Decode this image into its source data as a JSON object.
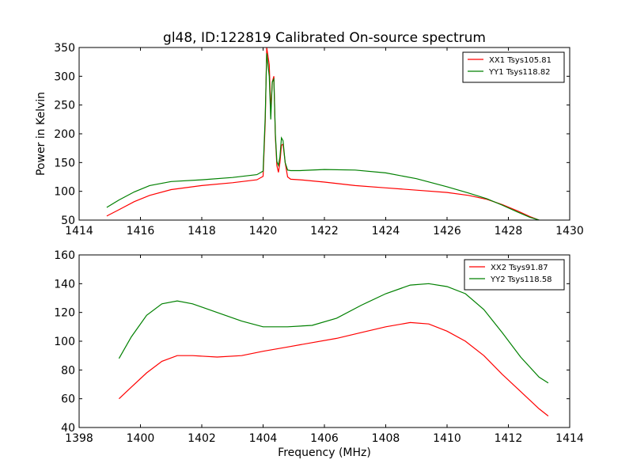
{
  "figure": {
    "background": "#ffffff",
    "title": "gl48, ID:122819 Calibrated On-source spectrum"
  },
  "chart_data": [
    {
      "type": "line",
      "title": "gl48, ID:122819 Calibrated On-source spectrum",
      "xlabel": "",
      "ylabel": "Power in Kelvin",
      "xlim": [
        1414,
        1430
      ],
      "ylim": [
        50,
        350
      ],
      "xticks": [
        1414,
        1416,
        1418,
        1420,
        1422,
        1424,
        1426,
        1428,
        1430
      ],
      "yticks": [
        50,
        100,
        150,
        200,
        250,
        300,
        350
      ],
      "grid": false,
      "legend_position": "top-right",
      "series": [
        {
          "name": "XX1 Tsys105.81",
          "color": "#ff0000",
          "x": [
            1414.9,
            1415.3,
            1415.8,
            1416.3,
            1417.0,
            1418.0,
            1419.0,
            1419.8,
            1420.0,
            1420.07,
            1420.12,
            1420.2,
            1420.25,
            1420.3,
            1420.35,
            1420.4,
            1420.45,
            1420.5,
            1420.55,
            1420.6,
            1420.65,
            1420.72,
            1420.8,
            1420.9,
            1421.2,
            1422.0,
            1423.0,
            1424.0,
            1425.0,
            1426.0,
            1426.7,
            1427.3,
            1427.8,
            1428.3,
            1428.7,
            1429.0
          ],
          "y": [
            57,
            68,
            82,
            93,
            103,
            110,
            115,
            120,
            126,
            220,
            350,
            320,
            240,
            290,
            300,
            195,
            145,
            133,
            150,
            180,
            182,
            150,
            125,
            121,
            120,
            116,
            110,
            106,
            102,
            98,
            93,
            86,
            77,
            66,
            56,
            50
          ]
        },
        {
          "name": "YY1 Tsys118.82",
          "color": "#008000",
          "x": [
            1414.9,
            1415.3,
            1415.8,
            1416.3,
            1417.0,
            1418.0,
            1419.0,
            1419.8,
            1420.0,
            1420.07,
            1420.12,
            1420.2,
            1420.25,
            1420.3,
            1420.35,
            1420.4,
            1420.45,
            1420.5,
            1420.55,
            1420.6,
            1420.65,
            1420.72,
            1420.8,
            1420.9,
            1421.2,
            1422.0,
            1423.0,
            1424.0,
            1425.0,
            1426.0,
            1426.7,
            1427.3,
            1427.8,
            1428.3,
            1428.7,
            1429.0
          ],
          "y": [
            72,
            85,
            99,
            110,
            117,
            120,
            124,
            129,
            135,
            230,
            340,
            300,
            225,
            290,
            295,
            200,
            152,
            145,
            160,
            193,
            188,
            150,
            137,
            136,
            136,
            138,
            137,
            132,
            122,
            108,
            97,
            87,
            76,
            64,
            55,
            50
          ]
        }
      ]
    },
    {
      "type": "line",
      "title": "",
      "xlabel": "Frequency (MHz)",
      "ylabel": "",
      "xlim": [
        1398,
        1414
      ],
      "ylim": [
        40,
        160
      ],
      "xticks": [
        1398,
        1400,
        1402,
        1404,
        1406,
        1408,
        1410,
        1412,
        1414
      ],
      "yticks": [
        40,
        60,
        80,
        100,
        120,
        140,
        160
      ],
      "grid": false,
      "legend_position": "top-right",
      "series": [
        {
          "name": "XX2 Tsys91.87",
          "color": "#ff0000",
          "x": [
            1399.3,
            1399.7,
            1400.2,
            1400.7,
            1401.2,
            1401.7,
            1402.5,
            1403.3,
            1404.0,
            1404.8,
            1405.6,
            1406.4,
            1407.2,
            1408.0,
            1408.8,
            1409.4,
            1410.0,
            1410.6,
            1411.2,
            1411.8,
            1412.4,
            1413.0,
            1413.3
          ],
          "y": [
            60,
            68,
            78,
            86,
            90,
            90,
            89,
            90,
            93,
            96,
            99,
            102,
            106,
            110,
            113,
            112,
            107,
            100,
            90,
            77,
            65,
            53,
            48
          ]
        },
        {
          "name": "YY2 Tsys118.58",
          "color": "#008000",
          "x": [
            1399.3,
            1399.7,
            1400.2,
            1400.7,
            1401.2,
            1401.7,
            1402.5,
            1403.3,
            1404.0,
            1404.8,
            1405.6,
            1406.4,
            1407.2,
            1408.0,
            1408.8,
            1409.4,
            1410.0,
            1410.6,
            1411.2,
            1411.8,
            1412.4,
            1413.0,
            1413.3
          ],
          "y": [
            88,
            103,
            118,
            126,
            128,
            126,
            120,
            114,
            110,
            110,
            111,
            116,
            125,
            133,
            139,
            140,
            138,
            133,
            122,
            106,
            89,
            75,
            71
          ]
        }
      ]
    }
  ]
}
